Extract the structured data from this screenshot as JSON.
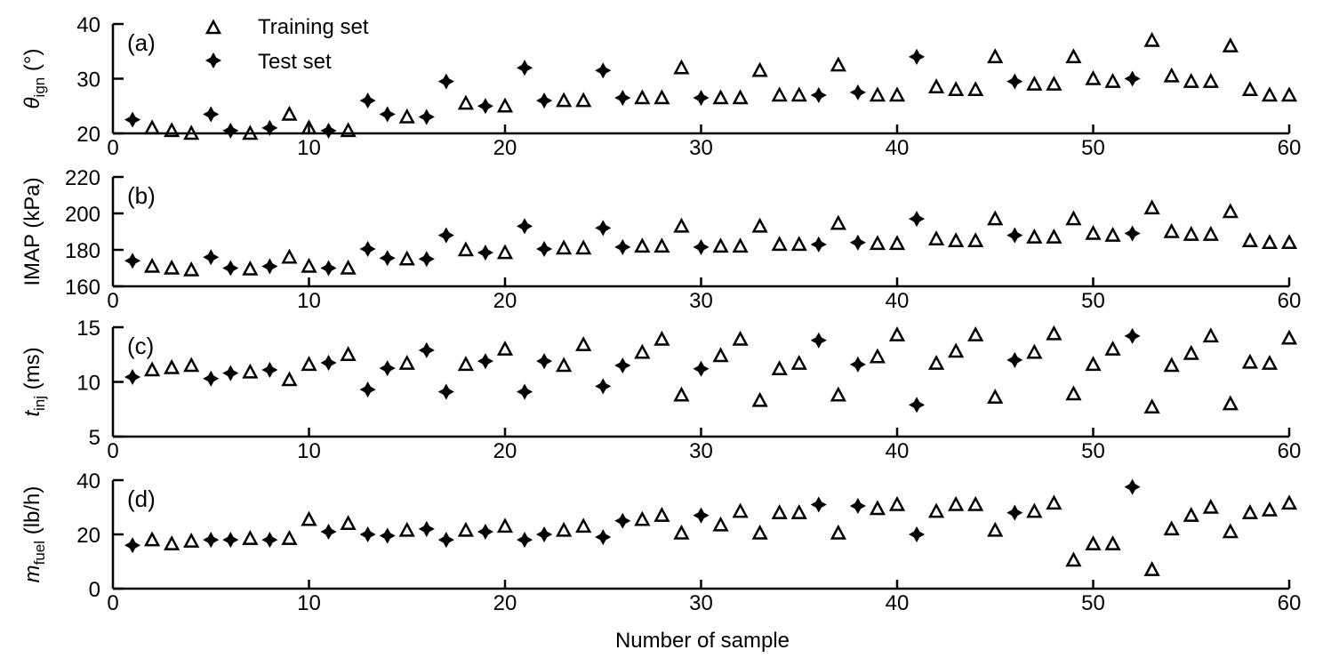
{
  "legend": {
    "training": "Training set",
    "test": "Test set"
  },
  "xlabel": "Number of sample",
  "chart_data": [
    {
      "type": "scatter",
      "panel_label": "(a)",
      "ylabel": {
        "main": "θ",
        "sub": "ign",
        "unit": " (°)"
      },
      "xlim": [
        0,
        60
      ],
      "ylim": [
        20,
        40
      ],
      "xticks": [
        "0",
        "10",
        "20",
        "30",
        "40",
        "50",
        "60"
      ],
      "yticks": [
        "20",
        "30",
        "40"
      ],
      "series": [
        {
          "name": "Training set",
          "marker": "triangle"
        },
        {
          "name": "Test set",
          "marker": "plus"
        }
      ],
      "test_indices": [
        1,
        5,
        6,
        8,
        11,
        13,
        14,
        16,
        17,
        19,
        21,
        22,
        25,
        26,
        30,
        36,
        38,
        41,
        46,
        52
      ],
      "values": [
        22.5,
        21,
        20.5,
        20,
        23.5,
        20.5,
        20,
        21,
        23.5,
        21,
        20.5,
        20.5,
        26,
        23.5,
        23,
        23,
        29.5,
        25.5,
        25,
        25,
        32,
        26,
        26,
        26,
        31.5,
        26.5,
        26.5,
        26.5,
        32,
        26.5,
        26.5,
        26.5,
        31.5,
        27,
        27,
        27,
        32.5,
        27.5,
        27,
        27,
        34,
        28.5,
        28,
        28,
        34,
        29.5,
        29,
        29,
        34,
        30,
        29.5,
        30,
        37,
        30.5,
        29.5,
        29.5,
        36,
        28,
        27,
        27
      ]
    },
    {
      "type": "scatter",
      "panel_label": "(b)",
      "ylabel": {
        "main": "IMAP",
        "sub": "",
        "unit": " (kPa)"
      },
      "xlim": [
        0,
        60
      ],
      "ylim": [
        160,
        220
      ],
      "xticks": [
        "0",
        "10",
        "20",
        "30",
        "40",
        "50",
        "60"
      ],
      "yticks": [
        "160",
        "180",
        "200",
        "220"
      ],
      "test_indices": [
        1,
        5,
        6,
        8,
        11,
        13,
        14,
        16,
        17,
        19,
        21,
        22,
        25,
        26,
        30,
        36,
        38,
        41,
        46,
        52
      ],
      "values": [
        174,
        171,
        170,
        169,
        176,
        170,
        169.5,
        171,
        176,
        171,
        170,
        170,
        180.5,
        175.5,
        175,
        175,
        188,
        180,
        178.5,
        178.5,
        193,
        180.5,
        181,
        181,
        192,
        181.5,
        182,
        182,
        193,
        181.5,
        182,
        182,
        193,
        183,
        183,
        183,
        194.5,
        184,
        183.5,
        183.5,
        197,
        186,
        185,
        185,
        197,
        188,
        187,
        187,
        197,
        189,
        188,
        189,
        203,
        190,
        188.5,
        188.5,
        201,
        185,
        184,
        184
      ]
    },
    {
      "type": "scatter",
      "panel_label": "(c)",
      "ylabel": {
        "main": "t",
        "sub": "inj",
        "unit": " (ms)"
      },
      "xlim": [
        0,
        60
      ],
      "ylim": [
        5,
        15
      ],
      "xticks": [
        "0",
        "10",
        "20",
        "30",
        "40",
        "50",
        "60"
      ],
      "yticks": [
        "5",
        "10",
        "15"
      ],
      "test_indices": [
        1,
        5,
        6,
        8,
        11,
        13,
        14,
        16,
        17,
        19,
        21,
        22,
        25,
        26,
        30,
        36,
        38,
        41,
        46,
        52
      ],
      "values": [
        10.45,
        11.1,
        11.3,
        11.5,
        10.3,
        10.8,
        10.9,
        11.1,
        10.2,
        11.6,
        11.75,
        12.5,
        9.3,
        11.25,
        11.7,
        12.9,
        9.1,
        11.6,
        11.9,
        13,
        9.1,
        11.9,
        11.5,
        13.4,
        9.6,
        11.5,
        12.7,
        13.9,
        8.8,
        11.2,
        12.4,
        13.9,
        8.3,
        11.2,
        11.7,
        13.8,
        8.8,
        11.6,
        12.3,
        14.3,
        7.9,
        11.7,
        12.8,
        14.3,
        8.6,
        12,
        12.7,
        14.4,
        8.9,
        11.6,
        13,
        14.2,
        7.7,
        11.5,
        12.6,
        14.2,
        8,
        11.8,
        11.7,
        14
      ]
    },
    {
      "type": "scatter",
      "panel_label": "(d)",
      "ylabel": {
        "main": "m",
        "sub": "fuel",
        "unit": " (lb/h)"
      },
      "xlim": [
        0,
        60
      ],
      "ylim": [
        0,
        40
      ],
      "xticks": [
        "0",
        "10",
        "20",
        "30",
        "40",
        "50",
        "60"
      ],
      "yticks": [
        "0",
        "20",
        "40"
      ],
      "test_indices": [
        1,
        5,
        6,
        8,
        11,
        13,
        14,
        16,
        17,
        19,
        21,
        22,
        25,
        26,
        30,
        36,
        38,
        41,
        46,
        52
      ],
      "values": [
        16,
        18,
        16.5,
        17.5,
        18,
        18,
        18.5,
        18,
        18.5,
        25.5,
        21,
        24,
        20,
        19.5,
        21.5,
        22,
        18,
        21.5,
        21,
        23,
        18,
        20,
        21.5,
        23,
        19,
        25,
        25.5,
        27,
        20.5,
        27,
        23.5,
        28.5,
        20.5,
        28,
        28,
        31,
        20.5,
        30.5,
        29.5,
        31,
        20,
        28.5,
        31,
        31,
        21.5,
        28,
        28.5,
        31.5,
        10.5,
        16.5,
        16.5,
        37.5,
        7,
        22,
        27,
        30,
        21,
        28,
        29,
        31.5
      ]
    }
  ]
}
